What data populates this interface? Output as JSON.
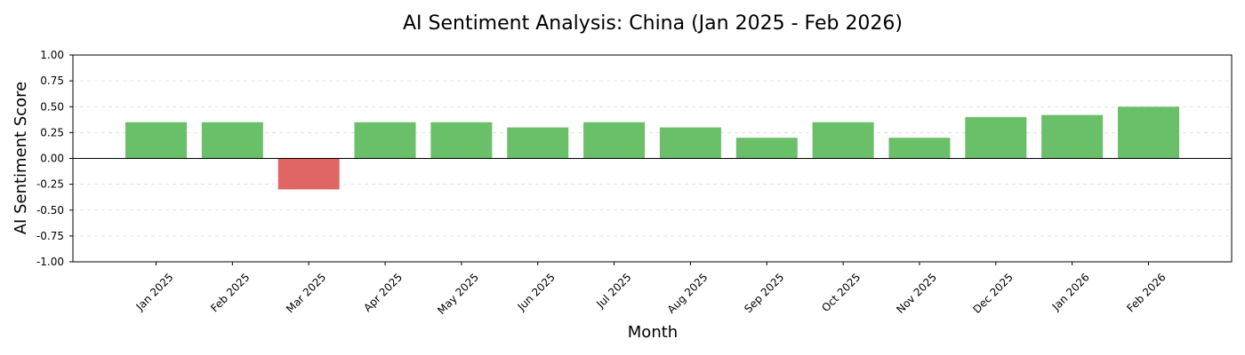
{
  "chart_data": {
    "type": "bar",
    "title": "AI Sentiment Analysis: China (Jan 2025 - Feb 2026)",
    "xlabel": "Month",
    "ylabel": "AI Sentiment Score",
    "categories": [
      "Jan 2025",
      "Feb 2025",
      "Mar 2025",
      "Apr 2025",
      "May 2025",
      "Jun 2025",
      "Jul 2025",
      "Aug 2025",
      "Sep 2025",
      "Oct 2025",
      "Nov 2025",
      "Dec 2025",
      "Jan 2026",
      "Feb 2026"
    ],
    "values": [
      0.35,
      0.35,
      -0.3,
      0.35,
      0.35,
      0.3,
      0.35,
      0.3,
      0.2,
      0.35,
      0.2,
      0.4,
      0.42,
      0.5
    ],
    "ylim": [
      -1.0,
      1.0
    ],
    "yticks": [
      "1.00",
      "0.75",
      "0.50",
      "0.25",
      "0.00",
      "-0.25",
      "-0.50",
      "-0.75",
      "-1.00"
    ],
    "ytick_values": [
      1.0,
      0.75,
      0.5,
      0.25,
      0.0,
      -0.25,
      -0.5,
      -0.75,
      -1.0
    ],
    "grid": true,
    "colors": {
      "positive": "#6abf69",
      "negative": "#e06666",
      "zero_line": "#000000",
      "grid": "#d9d9d9"
    }
  }
}
